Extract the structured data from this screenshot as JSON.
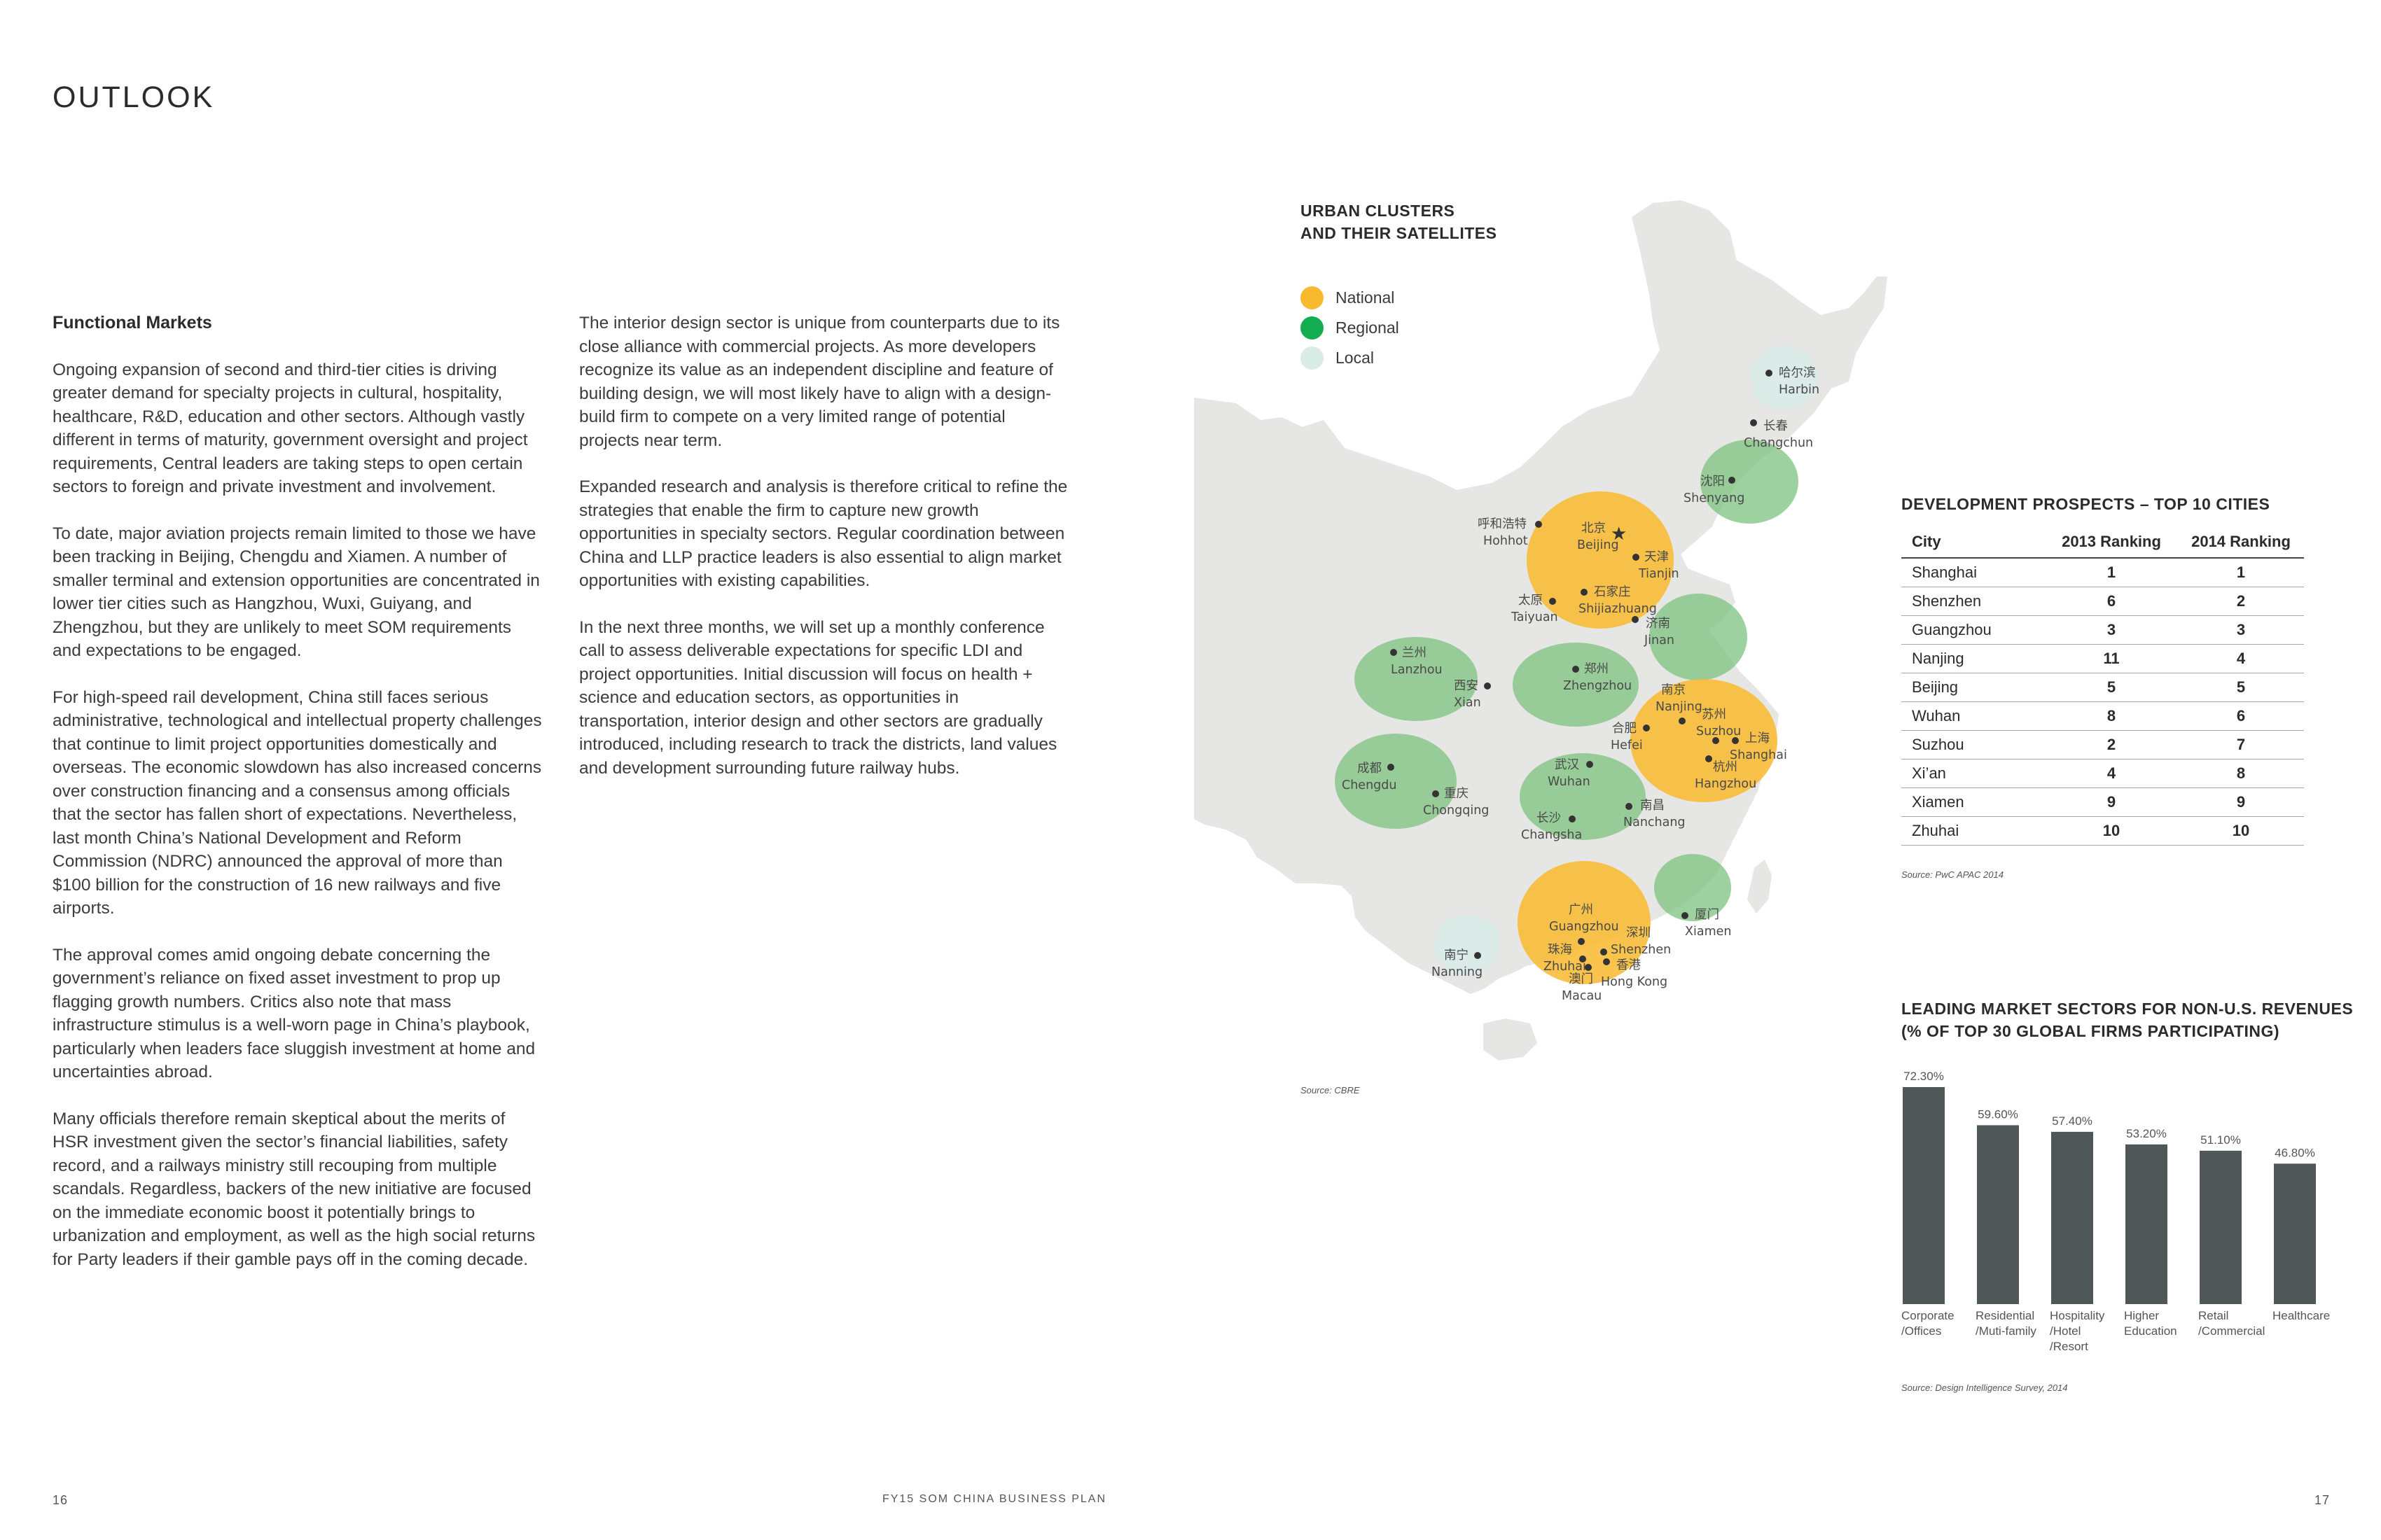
{
  "page_title": "OUTLOOK",
  "left_column": {
    "heading": "Functional Markets",
    "paragraphs": [
      "Ongoing expansion of second and third-tier cities is driving greater demand for specialty projects in cultural, hospitality, healthcare, R&D, education and other sectors. Although vastly different in terms of maturity, government oversight and project requirements, Central leaders are taking steps to open certain sectors to foreign and private investment and involvement.",
      "To date, major aviation projects remain limited to those we have been tracking in Beijing, Chengdu and Xiamen. A number of smaller terminal and extension opportunities are concentrated in lower tier cities such as Hangzhou, Wuxi, Guiyang, and Zhengzhou, but they are unlikely to meet SOM requirements and expectations to be engaged.",
      "For high-speed rail development, China still faces serious administrative, technological and intellectual property challenges that continue to limit project opportunities domestically and overseas. The economic slowdown has also increased concerns over construction financing and a consensus among officials that the sector has fallen short of expectations. Nevertheless, last month China’s National Development and Reform Commission (NDRC) announced the approval of more than $100 billion for the construction of 16 new railways and five airports.",
      "The approval comes amid ongoing debate concerning the government’s reliance on fixed asset investment to prop up flagging growth numbers. Critics also note that mass infrastructure stimulus is a well-worn page in China’s playbook, particularly when leaders face sluggish investment at home and uncertainties abroad.",
      "Many officials therefore remain skeptical about the merits of HSR investment given the sector’s financial liabilities, safety record, and a railways ministry still recouping from multiple scandals. Regardless, backers of the new initiative are focused on the immediate economic boost it potentially brings to urbanization and employment, as well as the high social returns for Party leaders if their gamble pays off in the coming decade."
    ]
  },
  "middle_column": {
    "paragraphs": [
      "The interior design sector is unique from counterparts due to its close alliance with commercial projects. As more developers recognize its value as an independent discipline and feature of building design, we will most likely have to align with a design-build firm to compete on a very limited range of potential projects near term.",
      "Expanded research and analysis is therefore critical to refine the strategies that enable the firm to capture new growth opportunities in specialty sectors. Regular coordination between China and LLP practice leaders is also essential to align market opportunities with existing capabilities.",
      "In the next three months, we will set up a monthly conference call to assess deliverable expectations for specific LDI and project opportunities. Initial discussion will focus on health + science and education sectors, as opportunities in transportation, interior design and other sectors are gradually introduced, including research to track the districts, land values and development surrounding future railway hubs."
    ]
  },
  "map": {
    "title_line1": "URBAN CLUSTERS",
    "title_line2": "AND THEIR SATELLITES",
    "legend": [
      {
        "label": "National",
        "color": "#f8b92e"
      },
      {
        "label": "Regional",
        "color": "#12ad50"
      },
      {
        "label": "Local",
        "color": "#d9ece8"
      }
    ],
    "source": "Source: CBRE",
    "cities": [
      {
        "cn": "哈尔滨",
        "en": "Harbin"
      },
      {
        "cn": "长春",
        "en": "Changchun"
      },
      {
        "cn": "沈阳",
        "en": "Shenyang"
      },
      {
        "cn": "呼和浩特",
        "en": "Hohhot"
      },
      {
        "cn": "北京",
        "en": "Beijing"
      },
      {
        "cn": "天津",
        "en": "Tianjin"
      },
      {
        "cn": "太原",
        "en": "Taiyuan"
      },
      {
        "cn": "石家庄",
        "en": "Shijiazhuang"
      },
      {
        "cn": "济南",
        "en": "Jinan"
      },
      {
        "cn": "兰州",
        "en": "Lanzhou"
      },
      {
        "cn": "西安",
        "en": "Xian"
      },
      {
        "cn": "郑州",
        "en": "Zhengzhou"
      },
      {
        "cn": "南京",
        "en": "Nanjing"
      },
      {
        "cn": "苏州",
        "en": "Suzhou"
      },
      {
        "cn": "上海",
        "en": "Shanghai"
      },
      {
        "cn": "合肥",
        "en": "Hefei"
      },
      {
        "cn": "杭州",
        "en": "Hangzhou"
      },
      {
        "cn": "成都",
        "en": "Chengdu"
      },
      {
        "cn": "重庆",
        "en": "Chongqing"
      },
      {
        "cn": "武汉",
        "en": "Wuhan"
      },
      {
        "cn": "南昌",
        "en": "Nanchang"
      },
      {
        "cn": "长沙",
        "en": "Changsha"
      },
      {
        "cn": "广州",
        "en": "Guangzhou"
      },
      {
        "cn": "深圳",
        "en": "Shenzhen"
      },
      {
        "cn": "珠海",
        "en": "Zhuhai"
      },
      {
        "cn": "香港",
        "en": "Hong Kong"
      },
      {
        "cn": "澳门",
        "en": "Macau"
      },
      {
        "cn": "厦门",
        "en": "Xiamen"
      },
      {
        "cn": "南宁",
        "en": "Nanning"
      }
    ]
  },
  "rankings": {
    "title": "DEVELOPMENT PROSPECTS – TOP 10 CITIES",
    "headers": [
      "City",
      "2013 Ranking",
      "2014 Ranking"
    ],
    "rows": [
      {
        "city": "Shanghai",
        "r2013": "1",
        "r2014": "1"
      },
      {
        "city": "Shenzhen",
        "r2013": "6",
        "r2014": "2"
      },
      {
        "city": "Guangzhou",
        "r2013": "3",
        "r2014": "3"
      },
      {
        "city": "Nanjing",
        "r2013": "11",
        "r2014": "4"
      },
      {
        "city": "Beijing",
        "r2013": "5",
        "r2014": "5"
      },
      {
        "city": "Wuhan",
        "r2013": "8",
        "r2014": "6"
      },
      {
        "city": "Suzhou",
        "r2013": "2",
        "r2014": "7"
      },
      {
        "city": "Xi’an",
        "r2013": "4",
        "r2014": "8"
      },
      {
        "city": "Xiamen",
        "r2013": "9",
        "r2014": "9"
      },
      {
        "city": "Zhuhai",
        "r2013": "10",
        "r2014": "10"
      }
    ],
    "source": "Source: PwC APAC 2014"
  },
  "chart_data": {
    "type": "bar",
    "title_line1": "LEADING MARKET SECTORS FOR NON-U.S. REVENUES",
    "title_line2": "(% OF TOP 30 GLOBAL FIRMS PARTICIPATING)",
    "categories": [
      [
        "Corporate",
        "/Offices"
      ],
      [
        "Residential",
        "/Muti-family"
      ],
      [
        "Hospitality",
        "/Hotel",
        "/Resort"
      ],
      [
        "Higher",
        "Education"
      ],
      [
        "Retail",
        "/Commercial"
      ],
      [
        "Healthcare"
      ]
    ],
    "values": [
      72.3,
      59.6,
      57.4,
      53.2,
      51.1,
      46.8
    ],
    "value_labels": [
      "72.30%",
      "59.60%",
      "57.40%",
      "53.20%",
      "51.10%",
      "46.80%"
    ],
    "bar_color": "#505759",
    "source": "Source: Design Intelligence Survey, 2014"
  },
  "footer": {
    "left_page": "16",
    "center": "FY15 SOM CHINA BUSINESS PLAN",
    "right_page": "17"
  }
}
